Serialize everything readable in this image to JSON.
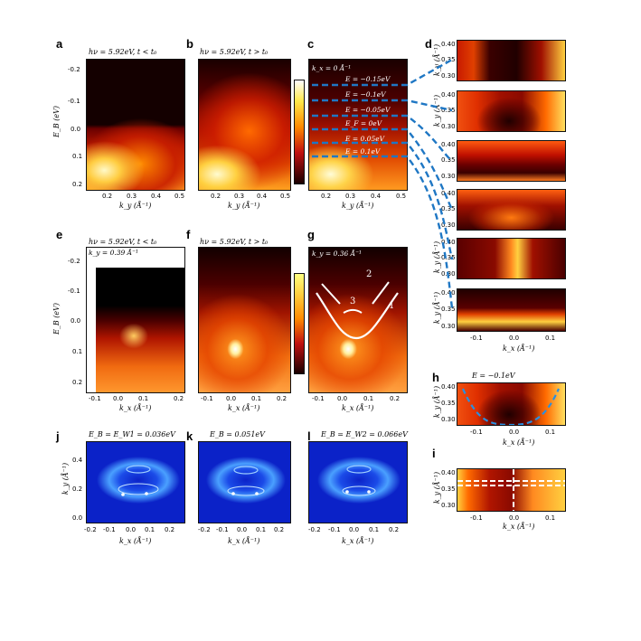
{
  "figure": {
    "panel_letters": [
      "a",
      "b",
      "c",
      "d",
      "e",
      "f",
      "g",
      "h",
      "i",
      "j",
      "k",
      "l"
    ],
    "a_title": "hν = 5.92eV, t < t₀",
    "b_title": "hν = 5.92eV, t > t₀",
    "e_title": "hν = 5.92eV, t < t₀",
    "e_sub": "k_y = 0.39 Å⁻¹",
    "f_title": "hν = 5.92eV, t > t₀",
    "c_kx": "k_x = 0 Å⁻¹",
    "c_energies": [
      "E = −0.15eV",
      "E = −0.1eV",
      "E = −0.05eV",
      "E_F = 0eV",
      "E = 0.05eV",
      "E = 0.1eV"
    ],
    "g_ky": "k_y = 0.36 Å⁻¹",
    "g_numbers": [
      "1",
      "2",
      "3"
    ],
    "h_title": "E = −0.1eV",
    "j_title": "E_B = E_W1 = 0.036eV",
    "k_title": "E_B = 0.051eV",
    "l_title": "E_B = E_W2 = 0.066eV"
  },
  "axes": {
    "eb_label": "E_B (eV)",
    "ky_label": "k_y (Å⁻¹)",
    "kx_label": "k_x (Å⁻¹)",
    "eb_ticks": [
      "-0.2",
      "-0.1",
      "0.0",
      "0.1",
      "0.2"
    ],
    "ky_ticks_top": [
      "0.2",
      "0.3",
      "0.4",
      "0.5"
    ],
    "kx_ticks": [
      "-0.1",
      "0.0",
      "0.1",
      "0.2"
    ],
    "d_ky_ticks": [
      "0.40",
      "0.35",
      "0.30"
    ],
    "d_kx_ticks": [
      "-0.1",
      "0.0",
      "0.1"
    ],
    "j_ky_ticks": [
      "0.4",
      "0.2",
      "0.0"
    ],
    "j_kx_ticks": [
      "-0.2",
      "-0.1",
      "0.0",
      "0.1",
      "0.2"
    ]
  },
  "colors": {
    "hot_dark": "#1a0000",
    "hot_red": "#c01010",
    "hot_orange": "#ff8a00",
    "hot_yellow": "#ffe84a",
    "connector_blue": "#1f77c4",
    "model_bg": "#0b22c8"
  }
}
